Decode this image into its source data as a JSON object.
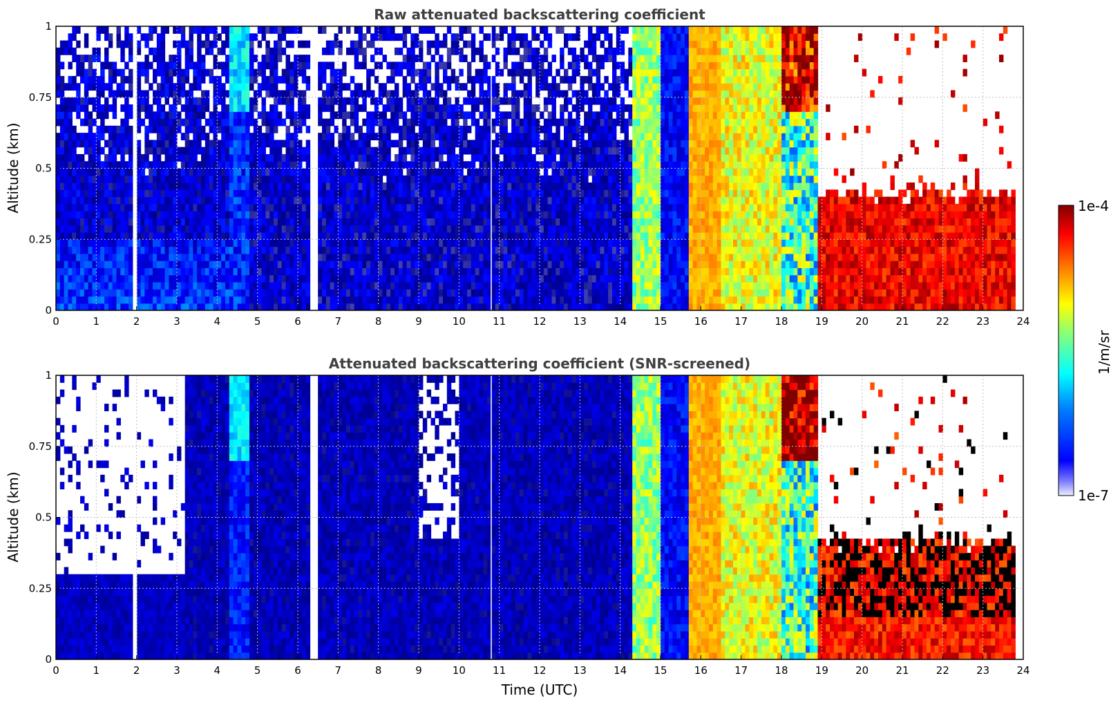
{
  "chart_data": [
    {
      "type": "heatmap",
      "title": "Raw attenuated backscattering coefficient",
      "xlabel": "",
      "ylabel": "Altitude (km)",
      "xlim": [
        0,
        24
      ],
      "ylim": [
        0,
        1
      ],
      "x_ticks": [
        "0",
        "1",
        "2",
        "3",
        "4",
        "5",
        "6",
        "7",
        "8",
        "9",
        "10",
        "11",
        "12",
        "13",
        "14",
        "15",
        "16",
        "17",
        "18",
        "19",
        "20",
        "21",
        "22",
        "23",
        "24"
      ],
      "y_ticks": [
        "0",
        "0.25",
        "0.5",
        "0.75",
        "1"
      ],
      "grid": true,
      "data_segments": [
        {
          "x": [
            0,
            4.3
          ],
          "level": 0.17,
          "noise": 0.08,
          "near_surface_level": 0.27,
          "sparse_aloft": true
        },
        {
          "x": [
            4.3,
            4.8
          ],
          "level": 0.25,
          "noise": 0.08,
          "top_level": 0.42
        },
        {
          "x": [
            4.8,
            14.3
          ],
          "level": 0.16,
          "noise": 0.08,
          "sparse_aloft": true
        },
        {
          "x": [
            14.3,
            15.0
          ],
          "level": 0.58,
          "noise": 0.1
        },
        {
          "x": [
            15.0,
            15.7
          ],
          "level": 0.22,
          "noise": 0.06
        },
        {
          "x": [
            15.7,
            16.5
          ],
          "level": 0.74,
          "noise": 0.04
        },
        {
          "x": [
            16.5,
            18.0
          ],
          "level": 0.65,
          "noise": 0.1
        },
        {
          "x": [
            18.0,
            18.9
          ],
          "level": 0.5,
          "noise": 0.2,
          "top_level": 0.92
        },
        {
          "x": [
            18.9,
            23.8
          ],
          "level": 0.9,
          "noise": 0.08,
          "layer_top_km": 0.42,
          "above_layer": "no data"
        }
      ],
      "missing_profiles_utc": [
        2.0,
        6.4,
        10.8
      ]
    },
    {
      "type": "heatmap",
      "title": "Attenuated backscattering coefficient (SNR-screened)",
      "xlabel": "Time (UTC)",
      "ylabel": "Altitude (km)",
      "xlim": [
        0,
        24
      ],
      "ylim": [
        0,
        1
      ],
      "x_ticks": [
        "0",
        "1",
        "2",
        "3",
        "4",
        "5",
        "6",
        "7",
        "8",
        "9",
        "10",
        "11",
        "12",
        "13",
        "14",
        "15",
        "16",
        "17",
        "18",
        "19",
        "20",
        "21",
        "22",
        "23",
        "24"
      ],
      "y_ticks": [
        "0",
        "0.25",
        "0.5",
        "0.75",
        "1"
      ],
      "grid": true,
      "data_segments": [
        {
          "x": [
            0,
            3.2
          ],
          "level": 0.16,
          "noise": 0.04,
          "screened_above_km": 0.29
        },
        {
          "x": [
            3.2,
            4.3
          ],
          "level": 0.15,
          "noise": 0.05
        },
        {
          "x": [
            4.3,
            4.8
          ],
          "level": 0.24,
          "noise": 0.06,
          "top_level": 0.42
        },
        {
          "x": [
            4.8,
            14.3
          ],
          "level": 0.15,
          "noise": 0.05,
          "screened_plume_utc": [
            9.0,
            10.0
          ]
        },
        {
          "x": [
            14.3,
            15.0
          ],
          "level": 0.58,
          "noise": 0.1
        },
        {
          "x": [
            15.0,
            15.7
          ],
          "level": 0.22,
          "noise": 0.06
        },
        {
          "x": [
            15.7,
            16.5
          ],
          "level": 0.74,
          "noise": 0.04
        },
        {
          "x": [
            16.5,
            18.0
          ],
          "level": 0.65,
          "noise": 0.1
        },
        {
          "x": [
            18.0,
            18.9
          ],
          "level": 0.5,
          "noise": 0.2,
          "top_level": 1.0
        },
        {
          "x": [
            18.9,
            23.8
          ],
          "level": 0.88,
          "noise": 0.08,
          "layer_top_km": 0.42,
          "above_layer": "no data",
          "saturated_above_km": 0.15
        }
      ],
      "missing_profiles_utc": [
        2.0,
        6.4,
        10.8
      ]
    }
  ],
  "colorbar": {
    "label": "1/m/sr",
    "max_label": "1e-4",
    "min_label": "1e-7",
    "colormap": "jet",
    "scale": "log",
    "colors": [
      "#f0f0ff",
      "#00008f",
      "#0000ff",
      "#0080ff",
      "#00ffff",
      "#80ff80",
      "#ffff00",
      "#ff8000",
      "#ff0000",
      "#800000"
    ]
  }
}
